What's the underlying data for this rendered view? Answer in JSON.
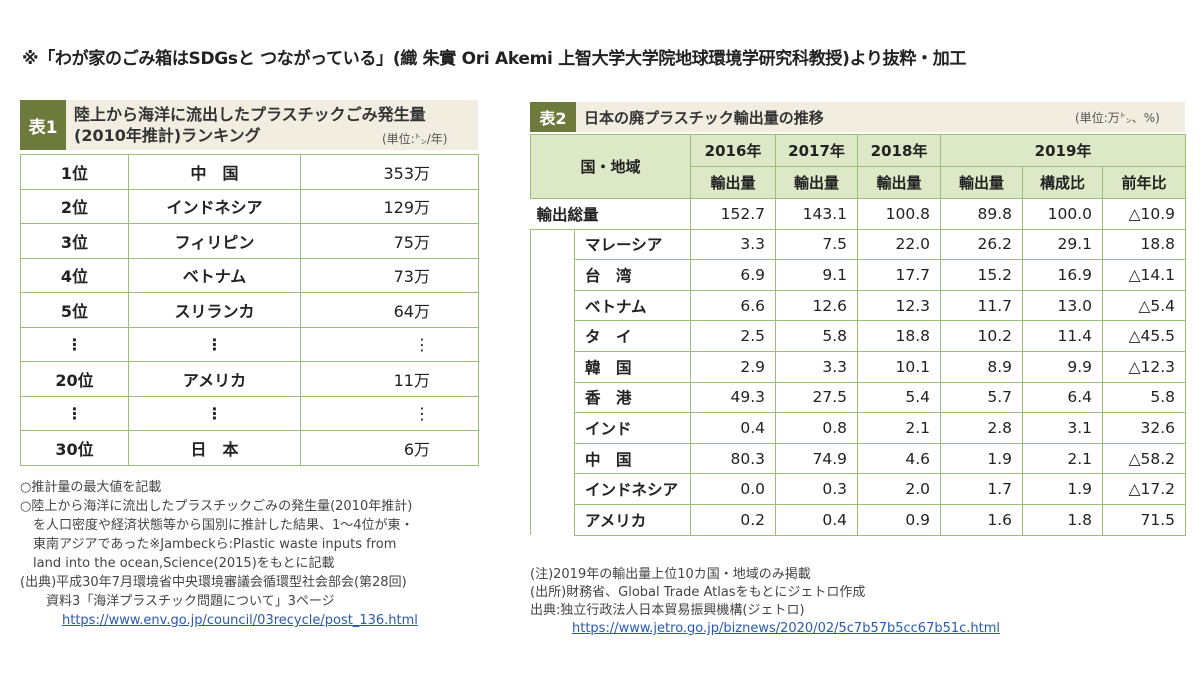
{
  "header": "※「わが家のごみ箱はSDGsと つながっている」(織 朱實 Ori Akemi 上智大学大学院地球環境学研究科教授)より抜粋・加工",
  "table1": {
    "label": "表1",
    "title": [
      "陸上から海洋に流出したプラスチックごみ発生量",
      "(2010年推計)ランキング"
    ],
    "unit": "(単位:㌧/年)",
    "rows": [
      [
        "1位",
        "中　国",
        "353万"
      ],
      [
        "2位",
        "インドネシア",
        "129万"
      ],
      [
        "3位",
        "フィリピン",
        "75万"
      ],
      [
        "4位",
        "ベトナム",
        "73万"
      ],
      [
        "5位",
        "スリランカ",
        "64万"
      ],
      [
        "⋮",
        "⋮",
        "⋮"
      ],
      [
        "20位",
        "アメリカ",
        "11万"
      ],
      [
        "⋮",
        "⋮",
        "⋮"
      ],
      [
        "30位",
        "日　本",
        "6万"
      ]
    ],
    "notes": [
      "○推計量の最大値を記載",
      "○陸上から海洋に流出したプラスチックごみの発生量(2010年推計)",
      "　を人口密度や経済状態等から国別に推計した結果、1～4位が東・",
      "　東南アジアであった※Jambeckら:Plastic waste inputs from",
      "　land into the ocean,Science(2015)をもとに記載",
      "(出典)平成30年7月環境省中央環境審議会循環型社会部会(第28回)",
      "　　資料3「海洋プラスチック問題について」3ページ"
    ],
    "url": "https://www.env.go.jp/council/03recycle/post_136.html"
  },
  "table2": {
    "label": "表2",
    "title": "日本の廃プラスチック輸出量の推移",
    "unit": "(単位:万㌧、%)",
    "header": {
      "region": "国・地域",
      "years": [
        "2016年",
        "2017年",
        "2018年",
        "2019年"
      ],
      "measures": [
        "輸出量",
        "輸出量",
        "輸出量",
        "輸出量",
        "構成比",
        "前年比"
      ]
    },
    "total": {
      "name": "輸出総量",
      "values": [
        "152.7",
        "143.1",
        "100.8",
        "89.8",
        "100.0",
        "△10.9"
      ]
    },
    "rows": [
      {
        "name": "マレーシア",
        "values": [
          "3.3",
          "7.5",
          "22.0",
          "26.2",
          "29.1",
          "18.8"
        ]
      },
      {
        "name": "台　湾",
        "values": [
          "6.9",
          "9.1",
          "17.7",
          "15.2",
          "16.9",
          "△14.1"
        ]
      },
      {
        "name": "ベトナム",
        "values": [
          "6.6",
          "12.6",
          "12.3",
          "11.7",
          "13.0",
          "△5.4"
        ]
      },
      {
        "name": "タ　イ",
        "values": [
          "2.5",
          "5.8",
          "18.8",
          "10.2",
          "11.4",
          "△45.5"
        ]
      },
      {
        "name": "韓　国",
        "values": [
          "2.9",
          "3.3",
          "10.1",
          "8.9",
          "9.9",
          "△12.3"
        ]
      },
      {
        "name": "香　港",
        "values": [
          "49.3",
          "27.5",
          "5.4",
          "5.7",
          "6.4",
          "5.8"
        ]
      },
      {
        "name": "インド",
        "values": [
          "0.4",
          "0.8",
          "2.1",
          "2.8",
          "3.1",
          "32.6"
        ]
      },
      {
        "name": "中　国",
        "values": [
          "80.3",
          "74.9",
          "4.6",
          "1.9",
          "2.1",
          "△58.2"
        ]
      },
      {
        "name": "インドネシア",
        "values": [
          "0.0",
          "0.3",
          "2.0",
          "1.7",
          "1.9",
          "△17.2"
        ]
      },
      {
        "name": "アメリカ",
        "values": [
          "0.2",
          "0.4",
          "0.9",
          "1.6",
          "1.8",
          "71.5"
        ]
      }
    ],
    "notes": [
      "(注)2019年の輸出量上位10カ国・地域のみ掲載",
      "(出所)財務省、Global Trade Atlasをもとにジェトロ作成",
      "出典:独立行政法人日本貿易振興機構(ジェトロ)"
    ],
    "url": "https://www.jetro.go.jp/biznews/2020/02/5c7b57b5cc67b51c.html"
  }
}
